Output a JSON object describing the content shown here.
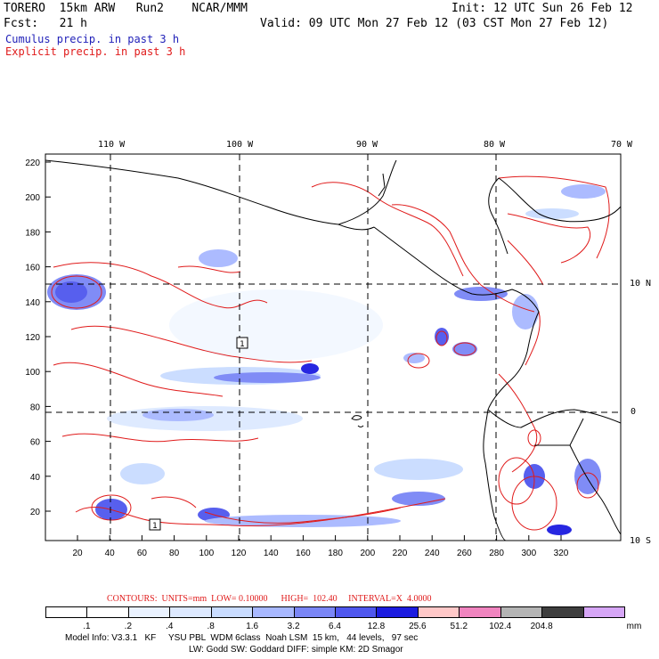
{
  "header": {
    "model": "TORERO  15km ARW   Run2    NCAR/MMM",
    "init": "Init: 12 UTC Sun 26 Feb 12",
    "fcst": "Fcst:   21 h",
    "valid": "Valid: 09 UTC Mon 27 Feb 12 (03 CST Mon 27 Feb 12)",
    "cumulus": "Cumulus precip. in past 3 h",
    "explicit": "Explicit precip. in past 3 h"
  },
  "map": {
    "lon_labels": [
      "110 W",
      "100 W",
      "90 W",
      "80 W",
      "70 W"
    ],
    "lat_labels": [
      "10 N",
      "0",
      "10 S"
    ],
    "x_ticks": [
      "20",
      "40",
      "60",
      "80",
      "100",
      "120",
      "140",
      "160",
      "180",
      "200",
      "220",
      "240",
      "260",
      "280",
      "300",
      "320"
    ],
    "y_ticks": [
      "220",
      "200",
      "180",
      "160",
      "140",
      "120",
      "100",
      "80",
      "60",
      "40",
      "20"
    ],
    "markers": [
      "1",
      "1"
    ],
    "colors": {
      "cumulus": "#1f1fb8",
      "explicit": "#e01b1b"
    }
  },
  "footer": {
    "contours": "CONTOURS:  UNITS=mm  LOW= 0.10000      HIGH=  102.40     INTERVAL=X  4.0000",
    "legend_values": [
      ".1",
      ".2",
      ".4",
      ".8",
      "1.6",
      "3.2",
      "6.4",
      "12.8",
      "25.6",
      "51.2",
      "102.4",
      "204.8"
    ],
    "legend_unit": "mm",
    "legend_colors": [
      "#ffffff",
      "#ffffff",
      "#eaf2ff",
      "#dde9ff",
      "#c9dcff",
      "#a8b8ff",
      "#7a86f6",
      "#4f57ee",
      "#1c1ce0",
      "#ffc8c8",
      "#f084bf",
      "#b4b4b4",
      "#3e3e3e",
      "#d6a6f6"
    ],
    "model_info_1": "Model Info: V3.3.1   KF     YSU PBL  WDM 6class  Noah LSM  15 km,   44 levels,   97 sec",
    "model_info_2": "LW: Godd SW: Goddard DIFF: simple KM: 2D Smagor"
  }
}
